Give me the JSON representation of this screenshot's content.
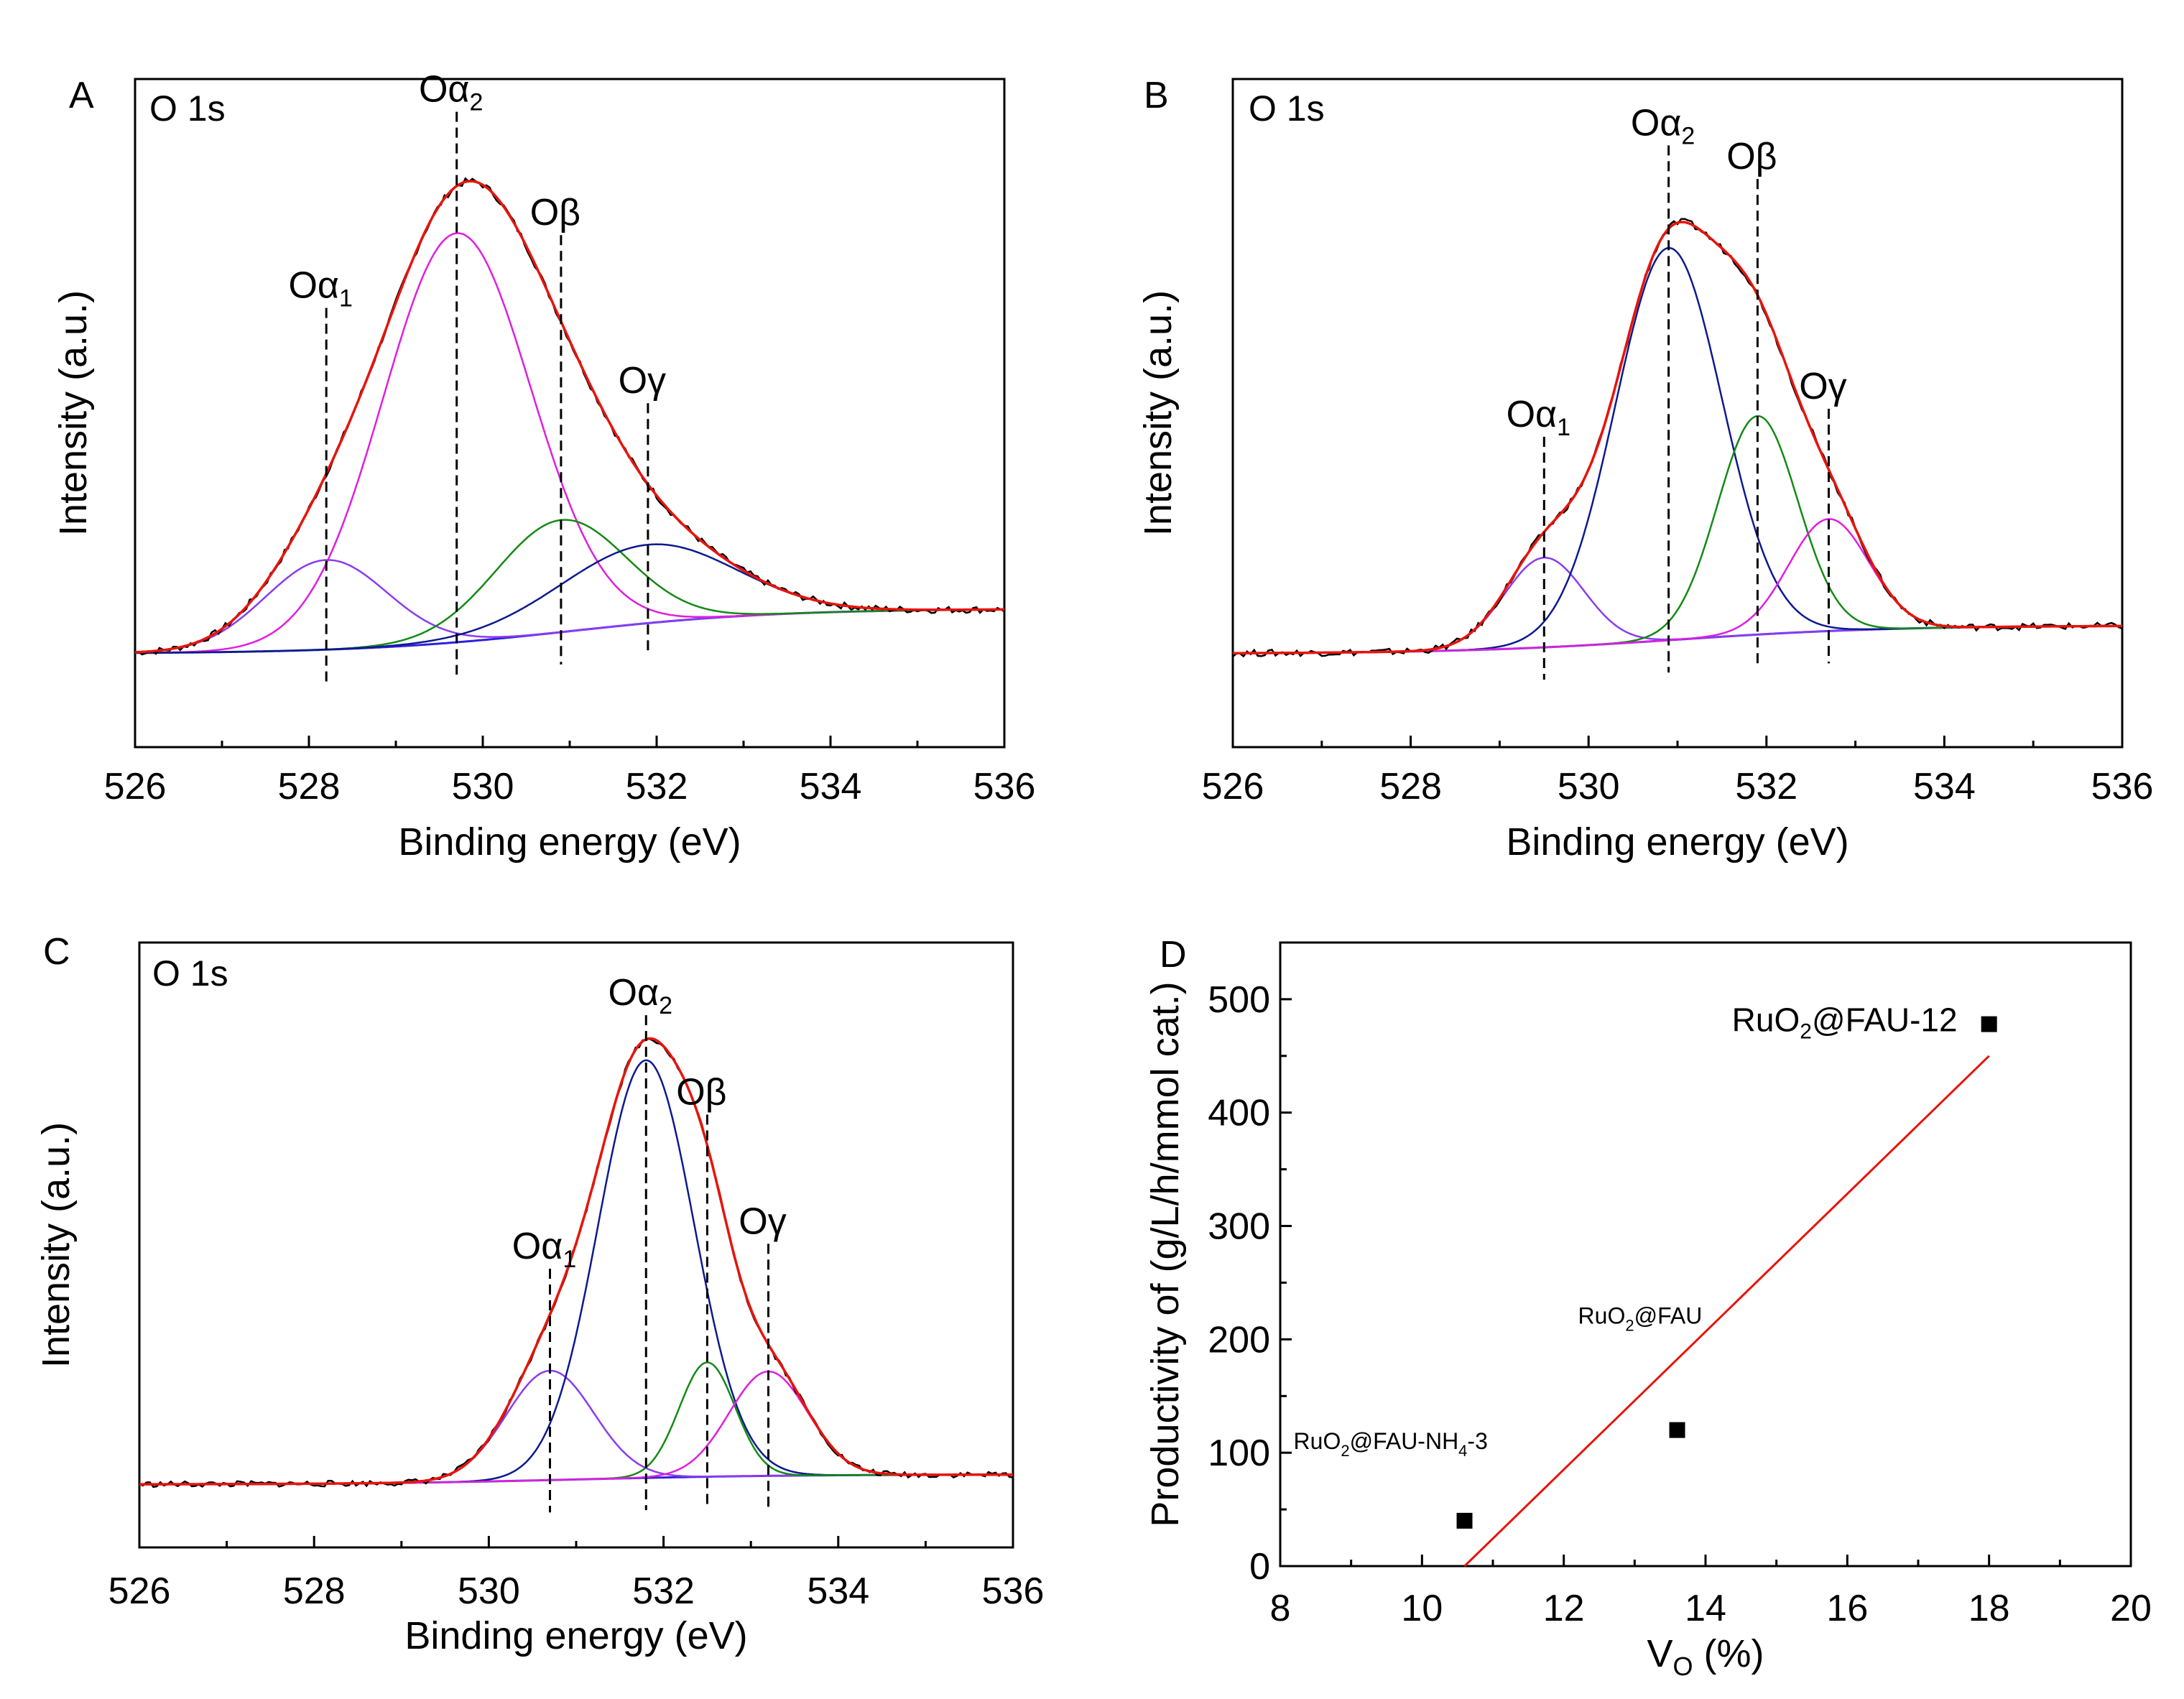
{
  "figure": {
    "colors": {
      "experimental": "#000000",
      "envelope": "#e8140c",
      "peak_magenta": "#e01ee0",
      "peak_violet": "#8a3cf0",
      "peak_green": "#148a14",
      "peak_navy": "#0c1a90",
      "baseline": "#3020e0",
      "fit_line": "#e8140c",
      "marker": "#000000"
    }
  },
  "chart_data": [
    {
      "panel": "A",
      "type": "line",
      "region_label": "O 1s",
      "xlabel": "Binding energy (eV)",
      "ylabel": "Intensity (a.u.)",
      "xlim": [
        526,
        536
      ],
      "ylim": [
        0,
        1
      ],
      "xticks": [
        "526",
        "528",
        "530",
        "532",
        "534",
        "536"
      ],
      "baseline": {
        "start": 0.09,
        "end": 0.17
      },
      "peaks": [
        {
          "name": "Oα1",
          "label_main": "Oα",
          "label_sub": "1",
          "center": 528.2,
          "height": 0.16,
          "width": 0.7,
          "color": "peak_violet",
          "marker_top": 0.73
        },
        {
          "name": "Oα2",
          "label_main": "Oα",
          "label_sub": "2",
          "center": 529.7,
          "height": 0.73,
          "width": 0.85,
          "color": "peak_magenta",
          "marker_top": 1.08
        },
        {
          "name": "Oβ",
          "label_main": "Oβ",
          "label_sub": "",
          "center": 530.9,
          "height": 0.2,
          "width": 0.75,
          "color": "peak_green",
          "marker_top": 0.86
        },
        {
          "name": "Oγ",
          "label_main": "Oγ",
          "label_sub": "",
          "center": 531.9,
          "height": 0.14,
          "width": 1.0,
          "color": "peak_navy",
          "marker_top": 0.56
        }
      ]
    },
    {
      "panel": "B",
      "type": "line",
      "region_label": "O 1s",
      "xlabel": "Binding energy (eV)",
      "ylabel": "Intensity (a.u.)",
      "xlim": [
        526,
        536
      ],
      "ylim": [
        0,
        1
      ],
      "xticks": [
        "526",
        "528",
        "530",
        "532",
        "534",
        "536"
      ],
      "baseline": {
        "start": 0.09,
        "end": 0.14
      },
      "peaks": [
        {
          "name": "Oα1",
          "label_main": "Oα",
          "label_sub": "1",
          "center": 529.5,
          "height": 0.16,
          "width": 0.45,
          "color": "peak_violet",
          "marker_top": 0.5
        },
        {
          "name": "Oα2",
          "label_main": "Oα",
          "label_sub": "2",
          "center": 530.9,
          "height": 0.7,
          "width": 0.6,
          "color": "peak_navy",
          "marker_top": 1.02
        },
        {
          "name": "Oβ",
          "label_main": "Oβ",
          "label_sub": "",
          "center": 531.9,
          "height": 0.39,
          "width": 0.45,
          "color": "peak_green",
          "marker_top": 0.96
        },
        {
          "name": "Oγ",
          "label_main": "Oγ",
          "label_sub": "",
          "center": 532.7,
          "height": 0.2,
          "width": 0.45,
          "color": "peak_magenta",
          "marker_top": 0.55
        }
      ]
    },
    {
      "panel": "C",
      "type": "line",
      "region_label": "O 1s",
      "xlabel": "Binding energy (eV)",
      "ylabel": "Intensity (a.u.)",
      "xlim": [
        526,
        536
      ],
      "ylim": [
        0,
        1
      ],
      "xticks": [
        "526",
        "528",
        "530",
        "532",
        "534",
        "536"
      ],
      "baseline": {
        "start": 0.04,
        "end": 0.06
      },
      "peaks": [
        {
          "name": "Oα1",
          "label_main": "Oα",
          "label_sub": "1",
          "center": 530.7,
          "height": 0.22,
          "width": 0.5,
          "color": "peak_violet",
          "marker_top": 0.5
        },
        {
          "name": "Oα2",
          "label_main": "Oα",
          "label_sub": "2",
          "center": 531.8,
          "height": 0.84,
          "width": 0.55,
          "color": "peak_navy",
          "marker_top": 1.01
        },
        {
          "name": "Oβ",
          "label_main": "Oβ",
          "label_sub": "",
          "center": 532.5,
          "height": 0.23,
          "width": 0.32,
          "color": "peak_green",
          "marker_top": 0.81
        },
        {
          "name": "Oγ",
          "label_main": "Oγ",
          "label_sub": "",
          "center": 533.2,
          "height": 0.21,
          "width": 0.45,
          "color": "peak_magenta",
          "marker_top": 0.55
        }
      ]
    },
    {
      "panel": "D",
      "type": "scatter",
      "xlabel_main": "V",
      "xlabel_sub": "O",
      "xlabel_tail": " (%)",
      "ylabel": "Productivity of (g/L/h/mmol cat.)",
      "xlim": [
        8,
        20
      ],
      "ylim": [
        0,
        550
      ],
      "xticks": [
        "8",
        "10",
        "12",
        "14",
        "16",
        "18",
        "20"
      ],
      "yticks": [
        "0",
        "100",
        "200",
        "300",
        "400",
        "500"
      ],
      "points": [
        {
          "x": 10.6,
          "y": 40,
          "label_main": "RuO",
          "label_sub": "2",
          "label_tail": "@FAU-NH",
          "label_sub2": "4",
          "label_end": "-3"
        },
        {
          "x": 13.6,
          "y": 120,
          "label_main": "RuO",
          "label_sub": "2",
          "label_tail": "@FAU",
          "label_sub2": "",
          "label_end": ""
        },
        {
          "x": 18.0,
          "y": 478,
          "label_main": "RuO",
          "label_sub": "2",
          "label_tail": "@FAU-12",
          "label_sub2": "",
          "label_end": ""
        }
      ],
      "fit_line": {
        "x": [
          10.6,
          18.0
        ],
        "y": [
          -10,
          450
        ]
      }
    }
  ]
}
